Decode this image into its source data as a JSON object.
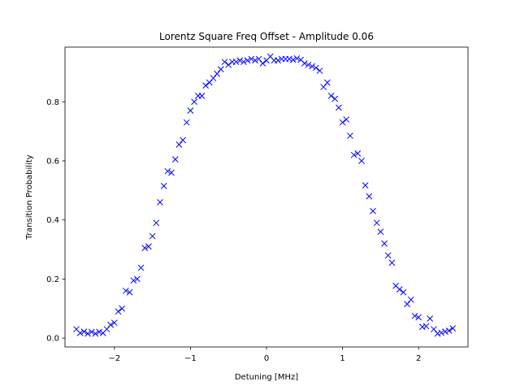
{
  "chart_data": {
    "type": "scatter",
    "title": "Lorentz Square Freq Offset - Amplitude 0.06",
    "xlabel": "Detuning [MHz]",
    "ylabel": "Transition Probability",
    "xlim": [
      -2.65,
      2.65
    ],
    "ylim": [
      -0.03,
      0.985
    ],
    "xticks": [
      -2,
      -1,
      0,
      1,
      2
    ],
    "xtick_labels": [
      "−2",
      "−1",
      "0",
      "1",
      "2"
    ],
    "yticks": [
      0.0,
      0.2,
      0.4,
      0.6,
      0.8
    ],
    "ytick_labels": [
      "0.0",
      "0.2",
      "0.4",
      "0.6",
      "0.8"
    ],
    "grid": false,
    "marker": "x",
    "color": "#0000ff",
    "series": [
      {
        "x": [
          -2.5,
          -2.45,
          -2.4,
          -2.35,
          -2.3,
          -2.25,
          -2.2,
          -2.15,
          -2.1,
          -2.05,
          -2.0,
          -1.95,
          -1.9,
          -1.85,
          -1.8,
          -1.75,
          -1.7,
          -1.65,
          -1.6,
          -1.55,
          -1.5,
          -1.45,
          -1.4,
          -1.35,
          -1.3,
          -1.25,
          -1.2,
          -1.15,
          -1.1,
          -1.05,
          -1.0,
          -0.95,
          -0.9,
          -0.85,
          -0.8,
          -0.75,
          -0.7,
          -0.65,
          -0.6,
          -0.55,
          -0.5,
          -0.45,
          -0.4,
          -0.35,
          -0.3,
          -0.25,
          -0.2,
          -0.15,
          -0.1,
          -0.05,
          0.0,
          0.05,
          0.1,
          0.15,
          0.2,
          0.25,
          0.3,
          0.35,
          0.4,
          0.45,
          0.5,
          0.55,
          0.6,
          0.65,
          0.7,
          0.75,
          0.8,
          0.85,
          0.9,
          0.95,
          1.0,
          1.05,
          1.1,
          1.15,
          1.2,
          1.25,
          1.3,
          1.35,
          1.4,
          1.45,
          1.5,
          1.55,
          1.6,
          1.65,
          1.7,
          1.75,
          1.8,
          1.85,
          1.9,
          1.95,
          2.0,
          2.05,
          2.1,
          2.15,
          2.2,
          2.25,
          2.3,
          2.35,
          2.4,
          2.45
        ],
        "y": [
          0.03,
          0.017,
          0.022,
          0.015,
          0.021,
          0.015,
          0.021,
          0.017,
          0.03,
          0.045,
          0.052,
          0.09,
          0.1,
          0.16,
          0.155,
          0.195,
          0.2,
          0.238,
          0.305,
          0.31,
          0.345,
          0.39,
          0.46,
          0.515,
          0.565,
          0.56,
          0.605,
          0.655,
          0.67,
          0.73,
          0.77,
          0.8,
          0.82,
          0.82,
          0.855,
          0.865,
          0.88,
          0.895,
          0.91,
          0.935,
          0.925,
          0.935,
          0.935,
          0.94,
          0.935,
          0.94,
          0.945,
          0.94,
          0.945,
          0.93,
          0.94,
          0.953,
          0.94,
          0.94,
          0.945,
          0.945,
          0.945,
          0.942,
          0.947,
          0.942,
          0.93,
          0.925,
          0.92,
          0.915,
          0.905,
          0.85,
          0.865,
          0.82,
          0.81,
          0.78,
          0.73,
          0.74,
          0.685,
          0.62,
          0.625,
          0.6,
          0.517,
          0.48,
          0.43,
          0.39,
          0.36,
          0.32,
          0.28,
          0.255,
          0.177,
          0.165,
          0.155,
          0.115,
          0.13,
          0.075,
          0.07,
          0.038,
          0.04,
          0.066,
          0.03,
          0.015,
          0.018,
          0.022,
          0.025,
          0.033
        ]
      }
    ]
  }
}
